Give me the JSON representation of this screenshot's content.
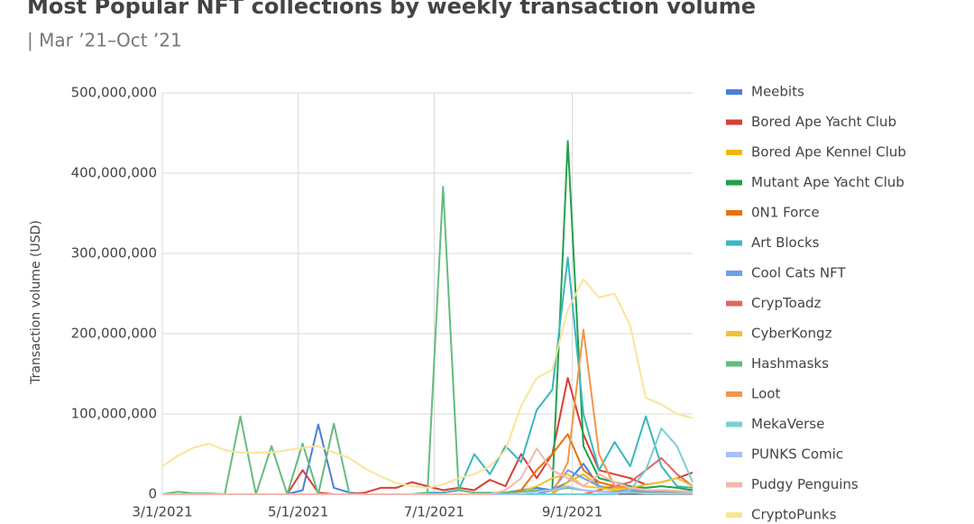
{
  "chart_data": {
    "type": "line",
    "title": "Most Popular NFT collections by weekly transaction volume",
    "subtitle": "| Mar ’21–Oct ’21",
    "y_label": "Transaction volume (USD)",
    "x": [
      "3/1/2021",
      "3/8/2021",
      "3/15/2021",
      "3/22/2021",
      "3/29/2021",
      "4/5/2021",
      "4/12/2021",
      "4/19/2021",
      "4/26/2021",
      "5/3/2021",
      "5/10/2021",
      "5/17/2021",
      "5/24/2021",
      "5/31/2021",
      "6/7/2021",
      "6/14/2021",
      "6/21/2021",
      "6/28/2021",
      "7/5/2021",
      "7/12/2021",
      "7/19/2021",
      "7/26/2021",
      "8/2/2021",
      "8/9/2021",
      "8/16/2021",
      "8/23/2021",
      "8/30/2021",
      "9/6/2021",
      "9/13/2021",
      "9/20/2021",
      "9/27/2021",
      "10/4/2021",
      "10/11/2021",
      "10/18/2021",
      "10/25/2021"
    ],
    "xlim": [
      "3/1/2021",
      "10/25/2021"
    ],
    "xticks": [
      "3/1/2021",
      "5/1/2021",
      "7/1/2021",
      "9/1/2021"
    ],
    "ylim": [
      0,
      500000000
    ],
    "yticks": [
      0,
      {
        "value": 100000000,
        "label": "100,000,000"
      },
      {
        "value": 200000000,
        "label": "200,000,000"
      },
      {
        "value": 300000000,
        "label": "300,000,000"
      },
      {
        "value": 400000000,
        "label": "400,000,000"
      },
      {
        "value": 500000000,
        "label": "500,000,000"
      }
    ],
    "grid": true,
    "legend": "right",
    "series": [
      {
        "name": "Meebits",
        "color": "#4a7fd9",
        "values": [
          0,
          0,
          0,
          0,
          0,
          0,
          0,
          0,
          0,
          5000000,
          87000000,
          8000000,
          2000000,
          0,
          0,
          0,
          0,
          0,
          0,
          0,
          0,
          0,
          2000000,
          5000000,
          8000000,
          5000000,
          15000000,
          38000000,
          10000000,
          5000000,
          3000000,
          3000000,
          2000000,
          2000000,
          1000000
        ]
      },
      {
        "name": "Bored Ape Yacht Club",
        "color": "#d93f35",
        "values": [
          0,
          0,
          0,
          0,
          0,
          0,
          0,
          0,
          0,
          30000000,
          2000000,
          0,
          0,
          2000000,
          8000000,
          8000000,
          15000000,
          10000000,
          5000000,
          8000000,
          5000000,
          18000000,
          10000000,
          50000000,
          20000000,
          50000000,
          145000000,
          75000000,
          30000000,
          25000000,
          20000000,
          12000000,
          15000000,
          20000000,
          27000000
        ]
      },
      {
        "name": "Bored Ape Kennel Club",
        "color": "#f2b705",
        "values": [
          0,
          0,
          0,
          0,
          0,
          0,
          0,
          0,
          0,
          0,
          0,
          0,
          0,
          0,
          0,
          0,
          0,
          0,
          0,
          0,
          0,
          0,
          0,
          0,
          0,
          0,
          15000000,
          25000000,
          10000000,
          8000000,
          5000000,
          5000000,
          5000000,
          4000000,
          3000000
        ]
      },
      {
        "name": "Mutant Ape Yacht Club",
        "color": "#23a04a",
        "values": [
          0,
          0,
          0,
          0,
          0,
          0,
          0,
          0,
          0,
          0,
          0,
          0,
          0,
          0,
          0,
          0,
          0,
          0,
          0,
          0,
          0,
          0,
          0,
          0,
          0,
          5000000,
          440000000,
          60000000,
          20000000,
          15000000,
          10000000,
          8000000,
          10000000,
          8000000,
          5000000
        ]
      },
      {
        "name": "0N1 Force",
        "color": "#e8710a",
        "values": [
          0,
          0,
          0,
          0,
          0,
          0,
          0,
          0,
          0,
          0,
          0,
          0,
          0,
          0,
          0,
          0,
          0,
          0,
          0,
          0,
          0,
          0,
          0,
          5000000,
          30000000,
          50000000,
          75000000,
          30000000,
          15000000,
          10000000,
          8000000,
          5000000,
          3000000,
          2000000,
          2000000
        ]
      },
      {
        "name": "Art Blocks",
        "color": "#3bb6bf",
        "values": [
          0,
          0,
          0,
          0,
          0,
          0,
          0,
          0,
          0,
          0,
          0,
          0,
          0,
          0,
          0,
          0,
          0,
          2000000,
          2000000,
          5000000,
          50000000,
          25000000,
          60000000,
          40000000,
          105000000,
          130000000,
          295000000,
          100000000,
          30000000,
          65000000,
          35000000,
          97000000,
          35000000,
          10000000,
          8000000
        ]
      },
      {
        "name": "Cool Cats NFT",
        "color": "#6d9eeb",
        "values": [
          0,
          0,
          0,
          0,
          0,
          0,
          0,
          0,
          0,
          0,
          0,
          0,
          0,
          0,
          0,
          0,
          0,
          0,
          0,
          0,
          0,
          0,
          0,
          0,
          0,
          5000000,
          30000000,
          20000000,
          10000000,
          5000000,
          5000000,
          3000000,
          3000000,
          2000000,
          2000000
        ]
      },
      {
        "name": "CrypToadz",
        "color": "#e06666",
        "values": [
          0,
          0,
          0,
          0,
          0,
          0,
          0,
          0,
          0,
          0,
          0,
          0,
          0,
          0,
          0,
          0,
          0,
          0,
          0,
          0,
          0,
          0,
          0,
          0,
          0,
          0,
          0,
          0,
          5000000,
          10000000,
          15000000,
          30000000,
          45000000,
          25000000,
          10000000
        ]
      },
      {
        "name": "CyberKongz",
        "color": "#f1c232",
        "values": [
          0,
          0,
          0,
          0,
          0,
          0,
          0,
          0,
          0,
          0,
          0,
          0,
          0,
          0,
          0,
          0,
          0,
          0,
          0,
          0,
          0,
          0,
          0,
          3000000,
          10000000,
          20000000,
          25000000,
          10000000,
          8000000,
          5000000,
          8000000,
          12000000,
          15000000,
          20000000,
          10000000
        ]
      },
      {
        "name": "Hashmasks",
        "color": "#64bc7e",
        "values": [
          0,
          3000000,
          1000000,
          1000000,
          0,
          97000000,
          0,
          60000000,
          0,
          63000000,
          0,
          88000000,
          0,
          0,
          0,
          0,
          0,
          2000000,
          383000000,
          5000000,
          2000000,
          2000000,
          2000000,
          3000000,
          5000000,
          5000000,
          8000000,
          5000000,
          3000000,
          3000000,
          3000000,
          2000000,
          2000000,
          2000000,
          2000000
        ]
      },
      {
        "name": "Loot",
        "color": "#f0964a",
        "values": [
          0,
          0,
          0,
          0,
          0,
          0,
          0,
          0,
          0,
          0,
          0,
          0,
          0,
          0,
          0,
          0,
          0,
          0,
          0,
          0,
          0,
          0,
          0,
          0,
          0,
          0,
          40000000,
          205000000,
          50000000,
          10000000,
          8000000,
          5000000,
          5000000,
          4000000,
          3000000
        ]
      },
      {
        "name": "MekaVerse",
        "color": "#78cfd4",
        "values": [
          0,
          0,
          0,
          0,
          0,
          0,
          0,
          0,
          0,
          0,
          0,
          0,
          0,
          0,
          0,
          0,
          0,
          0,
          0,
          0,
          0,
          0,
          0,
          0,
          0,
          0,
          0,
          0,
          0,
          0,
          5000000,
          30000000,
          82000000,
          60000000,
          15000000
        ]
      },
      {
        "name": "PUNKS Comic",
        "color": "#a4c2f4",
        "values": [
          0,
          0,
          0,
          0,
          0,
          0,
          0,
          0,
          0,
          0,
          0,
          0,
          0,
          0,
          0,
          0,
          0,
          0,
          0,
          0,
          0,
          0,
          0,
          0,
          3000000,
          5000000,
          10000000,
          5000000,
          3000000,
          2000000,
          2000000,
          1000000,
          1000000,
          1000000,
          1000000
        ]
      },
      {
        "name": "Pudgy Penguins",
        "color": "#f4b7b0",
        "values": [
          0,
          0,
          0,
          0,
          0,
          0,
          0,
          0,
          0,
          0,
          0,
          0,
          0,
          0,
          0,
          0,
          0,
          0,
          0,
          0,
          0,
          0,
          5000000,
          20000000,
          57000000,
          30000000,
          20000000,
          10000000,
          25000000,
          15000000,
          8000000,
          5000000,
          5000000,
          4000000,
          3000000
        ]
      },
      {
        "name": "CryptoPunks",
        "color": "#fbe399",
        "values": [
          35000000,
          48000000,
          58000000,
          63000000,
          55000000,
          52000000,
          52000000,
          52000000,
          55000000,
          58000000,
          60000000,
          52000000,
          45000000,
          32000000,
          22000000,
          14000000,
          10000000,
          8000000,
          12000000,
          20000000,
          25000000,
          35000000,
          55000000,
          110000000,
          145000000,
          155000000,
          230000000,
          268000000,
          245000000,
          250000000,
          210000000,
          120000000,
          112000000,
          100000000,
          95000000
        ]
      }
    ]
  }
}
